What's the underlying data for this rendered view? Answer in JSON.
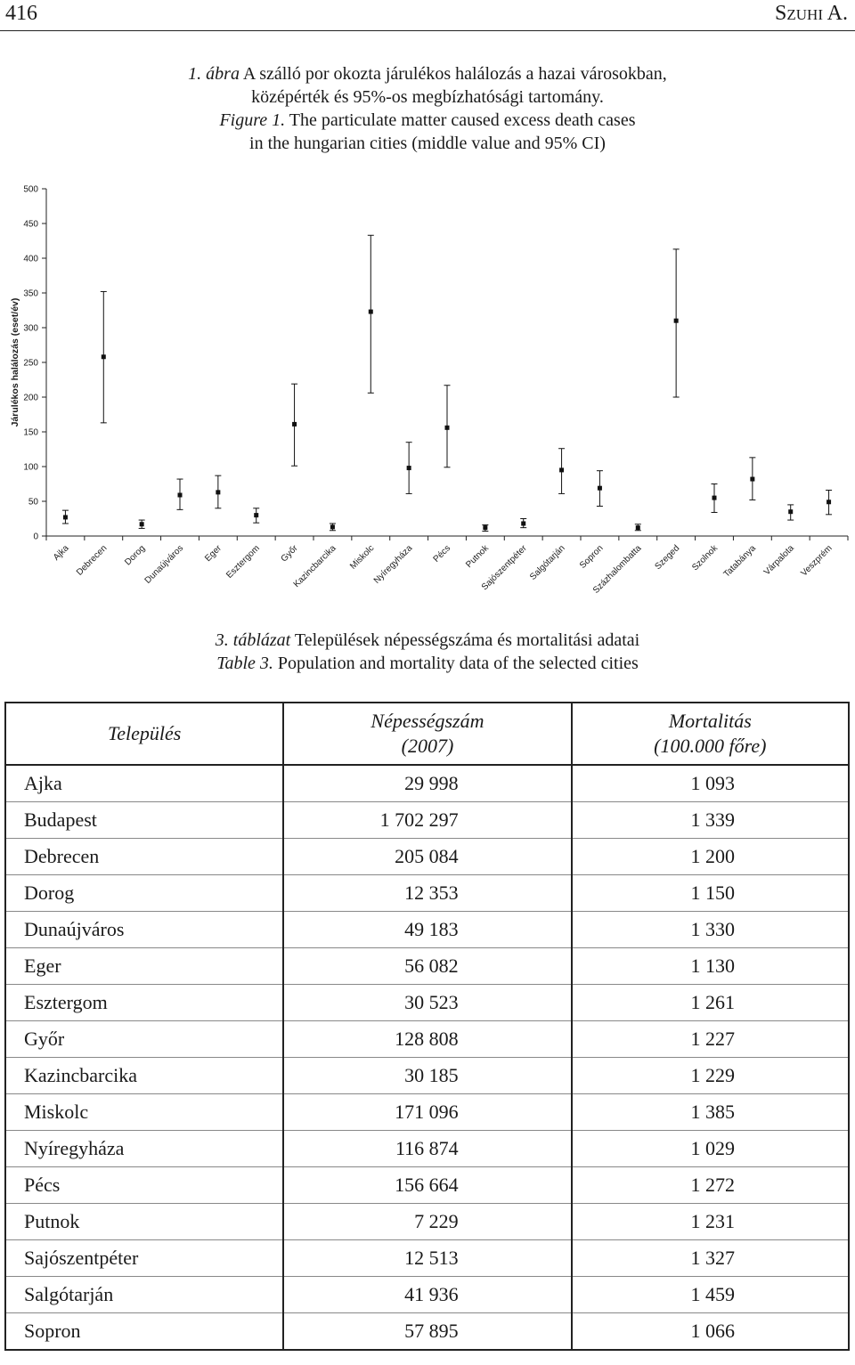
{
  "header": {
    "page_number": "416",
    "running_head": "Szuhi A."
  },
  "figure_caption": {
    "hu_label": "1. ábra",
    "hu_text_1": " A szálló por okozta járulékos halálozás a hazai városokban,",
    "hu_text_2": "középérték és 95%-os megbízhatósági tartomány.",
    "en_label": "Figure 1.",
    "en_text_1": " The particulate matter caused excess death cases",
    "en_text_2": "in the hungarian cities (middle value and 95% CI)"
  },
  "chart_data": {
    "type": "scatter",
    "error_bars": true,
    "ylabel": "Járulékos halálozás (eset/év)",
    "xlabel": "",
    "ylim": [
      0,
      500
    ],
    "yticks": [
      0,
      50,
      100,
      150,
      200,
      250,
      300,
      350,
      400,
      450,
      500
    ],
    "grid": false,
    "categories": [
      "Ajka",
      "Debrecen",
      "Dorog",
      "Dunaújváros",
      "Eger",
      "Esztergom",
      "Győr",
      "Kazincbarcika",
      "Miskolc",
      "Nyíregyháza",
      "Pécs",
      "Putnok",
      "Sajószentpéter",
      "Salgótarján",
      "Sopron",
      "Százhalombatta",
      "Szeged",
      "Szolnok",
      "Tatabánya",
      "Várpalota",
      "Veszprém"
    ],
    "values": [
      27,
      258,
      17,
      59,
      63,
      30,
      161,
      13,
      323,
      98,
      156,
      12,
      18,
      95,
      69,
      12,
      310,
      55,
      82,
      35,
      49
    ],
    "ci_low": [
      18,
      163,
      11,
      38,
      40,
      19,
      101,
      8,
      206,
      61,
      99,
      7,
      12,
      61,
      43,
      8,
      200,
      34,
      52,
      23,
      31
    ],
    "ci_high": [
      37,
      352,
      23,
      82,
      87,
      40,
      219,
      18,
      433,
      135,
      217,
      16,
      25,
      126,
      94,
      17,
      413,
      75,
      113,
      45,
      66
    ]
  },
  "table_caption": {
    "hu_label": "3. táblázat",
    "hu_text": " Települések népességszáma és mortalitási adatai",
    "en_label": "Table 3.",
    "en_text": " Population and mortality data of the selected cities"
  },
  "table": {
    "col_city": "Település",
    "col_pop_1": "Népességszám",
    "col_pop_2": "(2007)",
    "col_mort_1": "Mortalitás",
    "col_mort_2": "(100.000 főre)",
    "rows": [
      {
        "city": "Ajka",
        "population": "29 998",
        "mortality": "1 093"
      },
      {
        "city": "Budapest",
        "population": "1 702 297",
        "mortality": "1 339"
      },
      {
        "city": "Debrecen",
        "population": "205 084",
        "mortality": "1 200"
      },
      {
        "city": "Dorog",
        "population": "12 353",
        "mortality": "1 150"
      },
      {
        "city": "Dunaújváros",
        "population": "49 183",
        "mortality": "1 330"
      },
      {
        "city": "Eger",
        "population": "56 082",
        "mortality": "1 130"
      },
      {
        "city": "Esztergom",
        "population": "30 523",
        "mortality": "1 261"
      },
      {
        "city": "Győr",
        "population": "128 808",
        "mortality": "1 227"
      },
      {
        "city": "Kazincbarcika",
        "population": "30 185",
        "mortality": "1 229"
      },
      {
        "city": "Miskolc",
        "population": "171 096",
        "mortality": "1 385"
      },
      {
        "city": "Nyíregyháza",
        "population": "116 874",
        "mortality": "1 029"
      },
      {
        "city": "Pécs",
        "population": "156 664",
        "mortality": "1 272"
      },
      {
        "city": "Putnok",
        "population": "7 229",
        "mortality": "1 231"
      },
      {
        "city": "Sajószentpéter",
        "population": "12 513",
        "mortality": "1 327"
      },
      {
        "city": "Salgótarján",
        "population": "41 936",
        "mortality": "1 459"
      },
      {
        "city": "Sopron",
        "population": "57 895",
        "mortality": "1 066"
      }
    ]
  }
}
